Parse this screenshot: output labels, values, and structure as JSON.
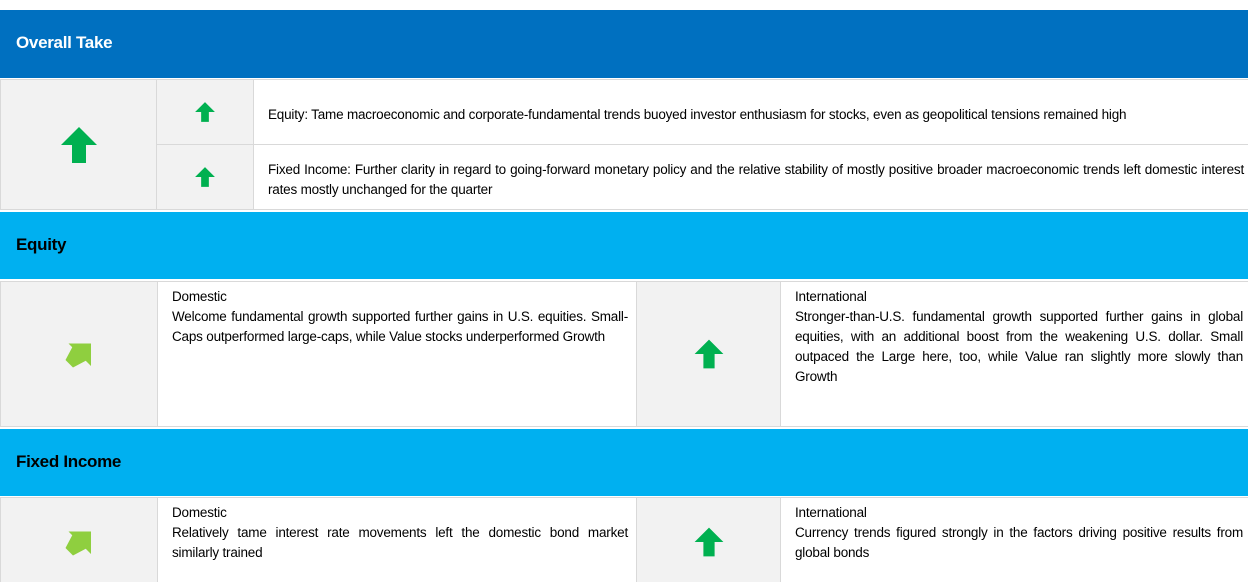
{
  "overall": {
    "title": "Overall Take",
    "items": [
      "Equity: Tame macroeconomic and corporate-fundamental trends buoyed investor enthusiasm for stocks, even as geopolitical tensions remained high",
      "Fixed Income: Further clarity in regard to going-forward monetary policy and the relative stability of mostly positive broader macroeconomic trends left domestic interest rates mostly unchanged for the quarter"
    ]
  },
  "sections": [
    {
      "title": "Equity",
      "cells": [
        {
          "heading": "Domestic",
          "text": "Welcome fundamental growth supported further gains in U.S. equities. Small-Caps outperformed large-caps, while Value stocks underperformed Growth"
        },
        {
          "heading": "International",
          "text": "Stronger-than-U.S. fundamental growth supported further gains in global equities, with an additional boost from the weakening U.S. dollar. Small outpaced the Large here, too, while Value ran slightly more slowly than Growth"
        }
      ]
    },
    {
      "title": "Fixed Income",
      "cells": [
        {
          "heading": "Domestic",
          "text": "Relatively tame interest rate movements left the domestic bond market similarly trained"
        },
        {
          "heading": "International",
          "text": "Currency trends figured strongly in the factors driving positive results from global bonds"
        }
      ]
    }
  ]
}
